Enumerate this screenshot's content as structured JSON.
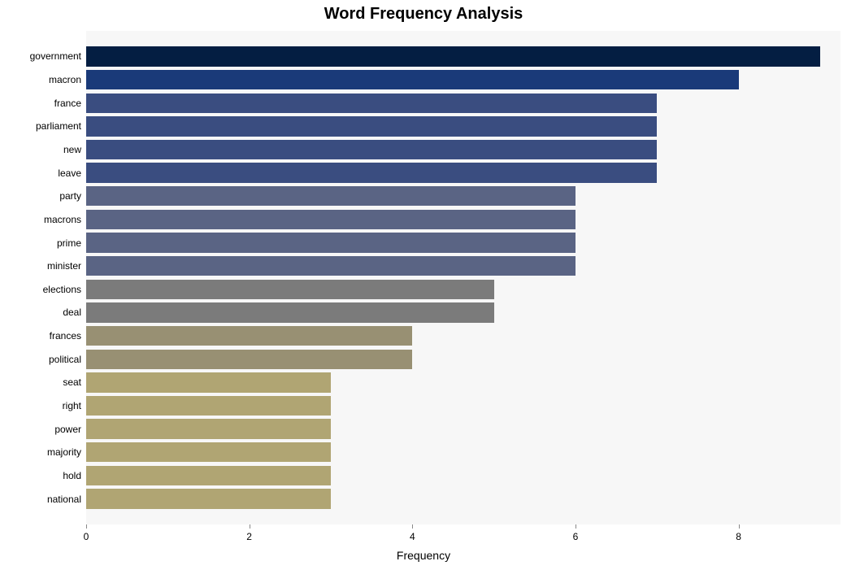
{
  "chart": {
    "type": "bar-horizontal",
    "title": "Word Frequency Analysis",
    "title_fontsize": 20,
    "title_fontweight": 700,
    "xlabel": "Frequency",
    "xlabel_fontsize": 14,
    "ylabel_fontsize": 12,
    "xtick_fontsize": 12,
    "background_color": "#f7f7f7",
    "page_background": "#ffffff",
    "axis_color": "#888888",
    "text_color": "#000000",
    "xmin": 0,
    "xmax": 9.25,
    "xticks": [
      0,
      2,
      4,
      6,
      8
    ],
    "bar_gap_ratio": 0.15,
    "top_pad_rows": 0.6,
    "bottom_pad_rows": 0.6,
    "data": [
      {
        "label": "government",
        "value": 9,
        "color": "#041e42"
      },
      {
        "label": "macron",
        "value": 8,
        "color": "#1a3a79"
      },
      {
        "label": "france",
        "value": 7,
        "color": "#3a4d80"
      },
      {
        "label": "parliament",
        "value": 7,
        "color": "#3a4d80"
      },
      {
        "label": "new",
        "value": 7,
        "color": "#3a4d80"
      },
      {
        "label": "leave",
        "value": 7,
        "color": "#3a4d80"
      },
      {
        "label": "party",
        "value": 6,
        "color": "#5a6484"
      },
      {
        "label": "macrons",
        "value": 6,
        "color": "#5a6484"
      },
      {
        "label": "prime",
        "value": 6,
        "color": "#5a6484"
      },
      {
        "label": "minister",
        "value": 6,
        "color": "#5a6484"
      },
      {
        "label": "elections",
        "value": 5,
        "color": "#7b7b7b"
      },
      {
        "label": "deal",
        "value": 5,
        "color": "#7b7b7b"
      },
      {
        "label": "frances",
        "value": 4,
        "color": "#989073"
      },
      {
        "label": "political",
        "value": 4,
        "color": "#989073"
      },
      {
        "label": "seat",
        "value": 3,
        "color": "#b0a573"
      },
      {
        "label": "right",
        "value": 3,
        "color": "#b0a573"
      },
      {
        "label": "power",
        "value": 3,
        "color": "#b0a573"
      },
      {
        "label": "majority",
        "value": 3,
        "color": "#b0a573"
      },
      {
        "label": "hold",
        "value": 3,
        "color": "#b0a573"
      },
      {
        "label": "national",
        "value": 3,
        "color": "#b0a573"
      }
    ]
  }
}
